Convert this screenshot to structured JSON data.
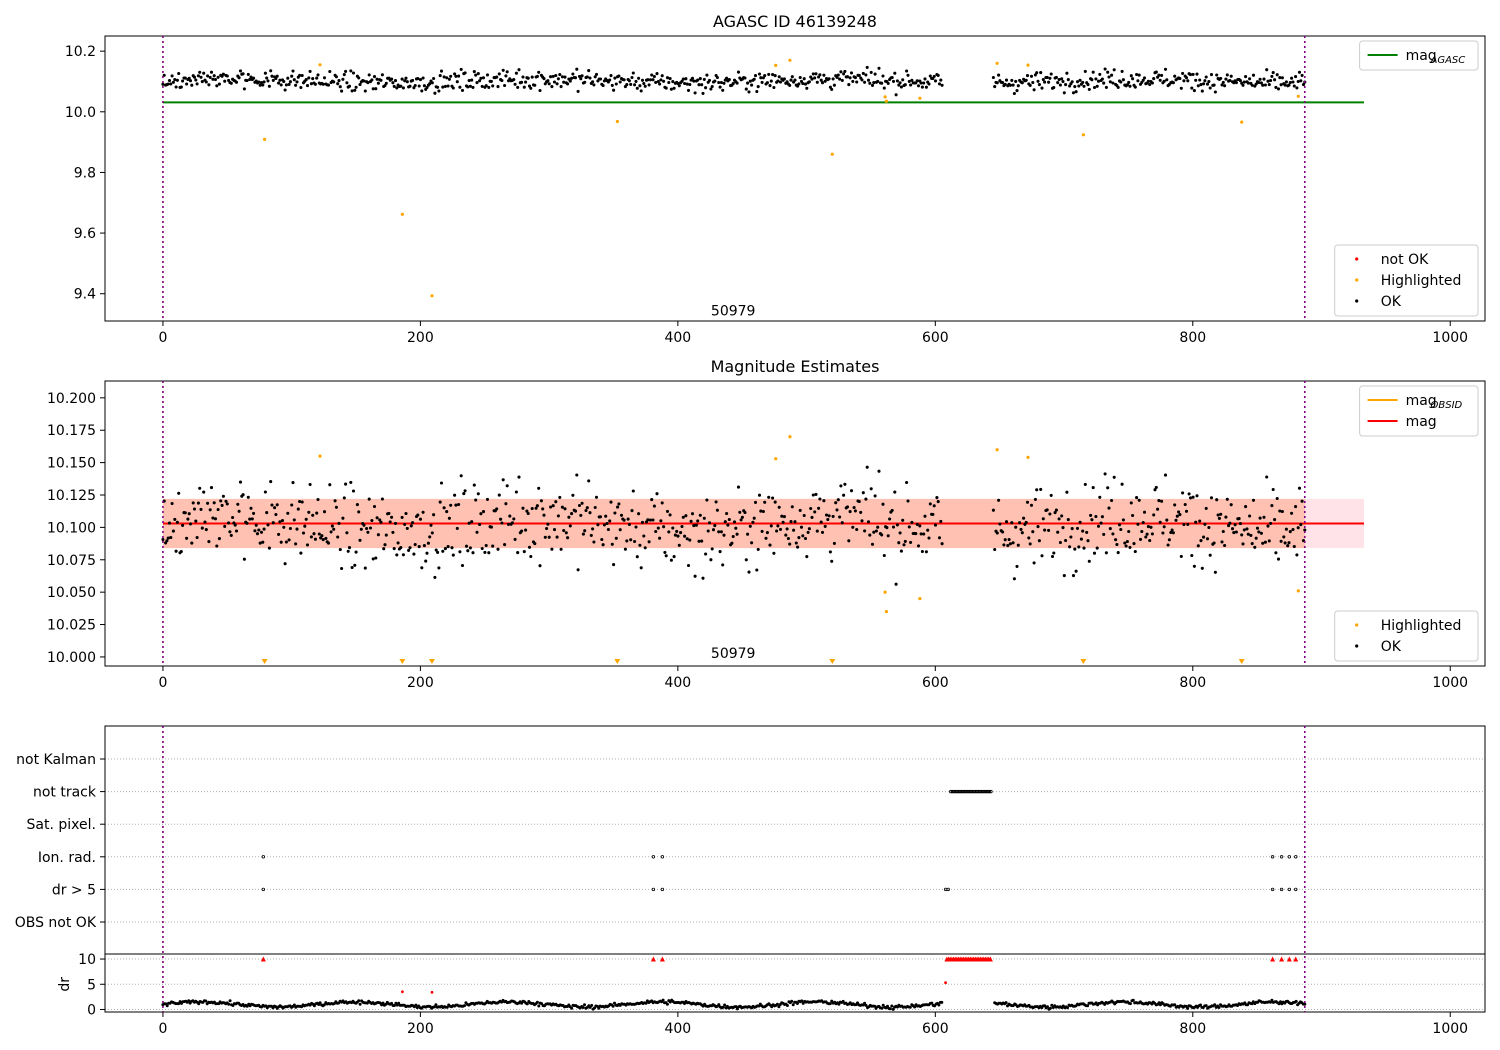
{
  "colors": {
    "ok": "#000000",
    "highlighted": "#ffa500",
    "not_ok": "#ff0000",
    "mag_agasc": "#008000",
    "mag_obsid": "#ffa500",
    "mag": "#ff0000",
    "obsid_boundary": "#800080",
    "band_outer": "#ffc0cb",
    "band_inner": "#ffa07a",
    "grid": "#b0b0b0"
  },
  "chart_data": [
    {
      "type": "scatter",
      "title": "AGASC ID 46139248",
      "xlim": [
        -45,
        1027
      ],
      "ylim": [
        9.31,
        10.25
      ],
      "xticks": [
        0,
        200,
        400,
        600,
        800,
        1000
      ],
      "yticks": [
        9.4,
        9.6,
        9.8,
        10.0,
        10.2
      ],
      "ytick_labels": [
        "9.4",
        "9.6",
        "9.8",
        "10.0",
        "10.2"
      ],
      "obsid_label": {
        "text": "50979",
        "x": 443,
        "y": 9.345
      },
      "obsid_boundaries": [
        0,
        887
      ],
      "mag_agasc": {
        "value": 10.031,
        "x_range": [
          0,
          933
        ]
      },
      "ok_points": {
        "n": 870,
        "x_range": [
          0,
          887
        ],
        "gaps": [
          [
            606,
            645
          ]
        ],
        "center": 10.102,
        "spread": 0.018
      },
      "highlighted_points": [
        [
          79,
          9.909
        ],
        [
          122,
          10.155
        ],
        [
          186,
          9.662
        ],
        [
          209,
          9.393
        ],
        [
          353,
          9.968
        ],
        [
          476,
          10.153
        ],
        [
          487,
          10.17
        ],
        [
          520,
          9.86
        ],
        [
          561,
          10.049
        ],
        [
          562,
          10.035
        ],
        [
          588,
          10.045
        ],
        [
          648,
          10.16
        ],
        [
          672,
          10.154
        ],
        [
          715,
          9.924
        ],
        [
          838,
          9.966
        ],
        [
          882,
          10.051
        ]
      ],
      "not_ok_points": [],
      "legends": [
        {
          "location": "upper right",
          "entries": [
            {
              "label_main": "mag",
              "label_sub": "AGASC",
              "kind": "line",
              "color_key": "mag_agasc"
            }
          ]
        },
        {
          "location": "lower right",
          "entries": [
            {
              "label": "not OK",
              "kind": "dot",
              "color_key": "not_ok"
            },
            {
              "label": "Highlighted",
              "kind": "dot",
              "color_key": "highlighted"
            },
            {
              "label": "OK",
              "kind": "dot",
              "color_key": "ok"
            }
          ]
        }
      ]
    },
    {
      "type": "scatter",
      "title": "Magnitude Estimates",
      "xlim": [
        -45,
        1027
      ],
      "ylim": [
        9.993,
        10.213
      ],
      "xticks": [
        0,
        200,
        400,
        600,
        800,
        1000
      ],
      "yticks": [
        10.0,
        10.025,
        10.05,
        10.075,
        10.1,
        10.125,
        10.15,
        10.175,
        10.2
      ],
      "ytick_labels": [
        "10.000",
        "10.025",
        "10.050",
        "10.075",
        "10.100",
        "10.125",
        "10.150",
        "10.175",
        "10.200"
      ],
      "obsid_label": {
        "text": "50979",
        "x": 443,
        "y": 10.0
      },
      "obsid_boundaries": [
        0,
        887
      ],
      "mag_line": {
        "value": 10.103,
        "x_range": [
          0,
          933
        ]
      },
      "band_outer": {
        "low": 10.084,
        "high": 10.122,
        "x_range": [
          0,
          933
        ]
      },
      "band_inner": {
        "low": 10.084,
        "high": 10.122,
        "x_range": [
          0,
          887
        ]
      },
      "ok_points": {
        "n": 870,
        "x_range": [
          0,
          887
        ],
        "gaps": [
          [
            606,
            645
          ]
        ],
        "center": 10.102,
        "spread": 0.018
      },
      "highlighted_points": [
        [
          122,
          10.155
        ],
        [
          476,
          10.153
        ],
        [
          487,
          10.17
        ],
        [
          561,
          10.05
        ],
        [
          562,
          10.035
        ],
        [
          588,
          10.045
        ],
        [
          648,
          10.16
        ],
        [
          672,
          10.154
        ],
        [
          882,
          10.051
        ]
      ],
      "clipped_markers_x": [
        79,
        186,
        209,
        353,
        520,
        715,
        838
      ],
      "legends": [
        {
          "location": "upper right",
          "entries": [
            {
              "label_main": "mag",
              "label_sub": "OBSID",
              "kind": "line",
              "color_key": "mag_obsid"
            },
            {
              "label": "mag",
              "kind": "line",
              "color_key": "mag"
            }
          ]
        },
        {
          "location": "lower right",
          "entries": [
            {
              "label": "Highlighted",
              "kind": "dot",
              "color_key": "highlighted"
            },
            {
              "label": "OK",
              "kind": "dot",
              "color_key": "ok"
            }
          ]
        }
      ]
    },
    {
      "type": "scatter",
      "title": "",
      "xlim": [
        -45,
        1027
      ],
      "xticks": [
        0,
        200,
        400,
        600,
        800,
        1000
      ],
      "obsid_boundaries": [
        0,
        887
      ],
      "flag_rows": [
        "not Kalman",
        "not track",
        "Sat. pixel.",
        "Ion. rad.",
        "dr > 5",
        "OBS not OK"
      ],
      "flag_points": {
        "not track": {
          "x_ranges": [
            [
              612,
              644
            ]
          ]
        },
        "Ion. rad.": {
          "x": [
            78,
            381,
            388,
            862,
            869,
            875,
            880
          ]
        },
        "dr > 5": {
          "x": [
            78,
            381,
            388,
            608,
            610,
            862,
            869,
            875,
            880
          ]
        }
      },
      "dr_panel": {
        "ylim": [
          -0.5,
          11
        ],
        "yticks": [
          0,
          5,
          10
        ],
        "ylabel": "dr",
        "ok_series": {
          "n": 800,
          "x_range": [
            0,
            887
          ],
          "gaps": [
            [
              606,
              645
            ]
          ],
          "baseline": 1.0
        },
        "red_dots": [
          [
            186,
            3.5
          ],
          [
            209,
            3.4
          ],
          [
            608,
            5.3
          ]
        ],
        "clipped_markers_x": [
          78,
          381,
          388,
          862,
          869,
          875,
          880
        ],
        "clipped_ranges": [
          [
            609,
            644
          ]
        ]
      }
    }
  ]
}
